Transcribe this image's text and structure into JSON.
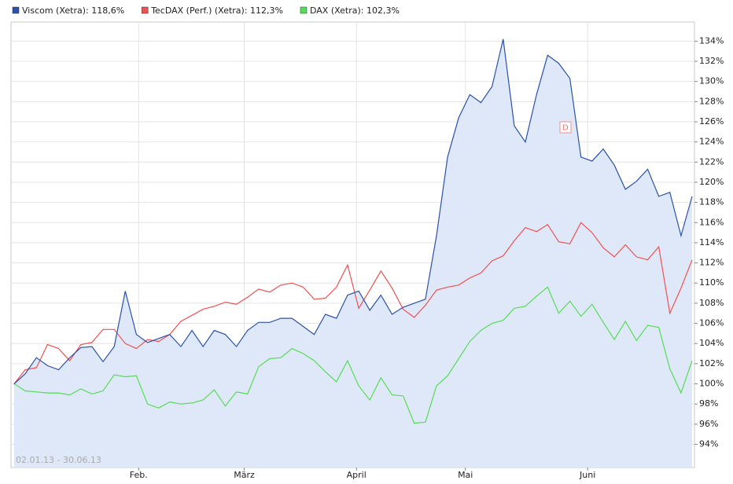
{
  "chart_data": {
    "type": "line",
    "date_range": "02.01.13 - 30.06.13",
    "annotations": [
      "D"
    ],
    "xlim": [
      0,
      61
    ],
    "xticks": [
      {
        "value": 11.2,
        "label": "Feb."
      },
      {
        "value": 20.7,
        "label": "März"
      },
      {
        "value": 30.8,
        "label": "April"
      },
      {
        "value": 40.6,
        "label": "Mai"
      },
      {
        "value": 51.6,
        "label": "Juni"
      }
    ],
    "ylim": [
      91.7,
      135.9
    ],
    "yticks": [
      {
        "value": 94,
        "label": "94%"
      },
      {
        "value": 96,
        "label": "96%"
      },
      {
        "value": 98,
        "label": "98%"
      },
      {
        "value": 100,
        "label": "100%"
      },
      {
        "value": 102,
        "label": "102%"
      },
      {
        "value": 104,
        "label": "104%"
      },
      {
        "value": 106,
        "label": "106%"
      },
      {
        "value": 108,
        "label": "108%"
      },
      {
        "value": 110,
        "label": "110%"
      },
      {
        "value": 112,
        "label": "112%"
      },
      {
        "value": 114,
        "label": "114%"
      },
      {
        "value": 116,
        "label": "116%"
      },
      {
        "value": 118,
        "label": "118%"
      },
      {
        "value": 120,
        "label": "120%"
      },
      {
        "value": 122,
        "label": "122%"
      },
      {
        "value": 124,
        "label": "124%"
      },
      {
        "value": 126,
        "label": "126%"
      },
      {
        "value": 128,
        "label": "128%"
      },
      {
        "value": 130,
        "label": "130%"
      },
      {
        "value": 132,
        "label": "132%"
      },
      {
        "value": 134,
        "label": "134%"
      }
    ],
    "grid": true,
    "series": [
      {
        "name": "Viscom (Xetra): 118,6%",
        "color": "#2a52a8",
        "fill": "#dfe8f8",
        "values": [
          100,
          101,
          102.6,
          101.8,
          101.4,
          102.6,
          103.6,
          103.7,
          102.2,
          103.7,
          109.2,
          104.9,
          104.1,
          104.5,
          104.9,
          103.7,
          105.3,
          103.7,
          105.3,
          104.9,
          103.7,
          105.3,
          106.1,
          106.1,
          106.5,
          106.5,
          105.7,
          104.9,
          106.9,
          106.5,
          108.8,
          109.2,
          107.3,
          108.8,
          106.9,
          107.6,
          108,
          108.4,
          114.7,
          122.5,
          126.4,
          128.7,
          127.9,
          129.5,
          134.2,
          125.6,
          124,
          128.7,
          132.6,
          131.8,
          130.3,
          122.5,
          122.1,
          123.3,
          121.7,
          119.3,
          120.1,
          121.3,
          118.6,
          119,
          114.7,
          118.6
        ]
      },
      {
        "name": "TecDAX (Perf.) (Xetra): 112,3%",
        "color": "#f05050",
        "values": [
          100,
          101.4,
          101.6,
          103.9,
          103.5,
          102.3,
          103.9,
          104.1,
          105.4,
          105.4,
          104,
          103.5,
          104.4,
          104.2,
          104.9,
          106.2,
          106.8,
          107.4,
          107.7,
          108.1,
          107.9,
          108.6,
          109.4,
          109.1,
          109.8,
          110,
          109.6,
          108.4,
          108.5,
          109.6,
          111.8,
          107.5,
          109.3,
          111.2,
          109.5,
          107.4,
          106.6,
          107.8,
          109.3,
          109.6,
          109.8,
          110.5,
          111,
          112.2,
          112.7,
          114.2,
          115.5,
          115.1,
          115.8,
          114.1,
          113.9,
          116,
          115,
          113.5,
          112.6,
          113.8,
          112.6,
          112.3,
          113.6,
          107,
          109.5,
          112.3
        ]
      },
      {
        "name": "DAX (Xetra): 102,3%",
        "color": "#55dd55",
        "values": [
          100,
          99.3,
          99.2,
          99.1,
          99.1,
          98.9,
          99.5,
          99,
          99.3,
          100.9,
          100.7,
          100.8,
          98,
          97.6,
          98.2,
          98,
          98.1,
          98.4,
          99.4,
          97.8,
          99.2,
          99,
          101.7,
          102.5,
          102.6,
          103.5,
          103,
          102.3,
          101.2,
          100.2,
          102.3,
          99.8,
          98.4,
          100.6,
          98.9,
          98.8,
          96.1,
          96.2,
          99.8,
          100.8,
          102.5,
          104.2,
          105.3,
          106,
          106.3,
          107.5,
          107.7,
          108.7,
          109.6,
          107,
          108.2,
          106.7,
          107.9,
          106.1,
          104.4,
          106.2,
          104.3,
          105.8,
          105.6,
          101.5,
          99.1,
          102.3
        ]
      }
    ]
  }
}
